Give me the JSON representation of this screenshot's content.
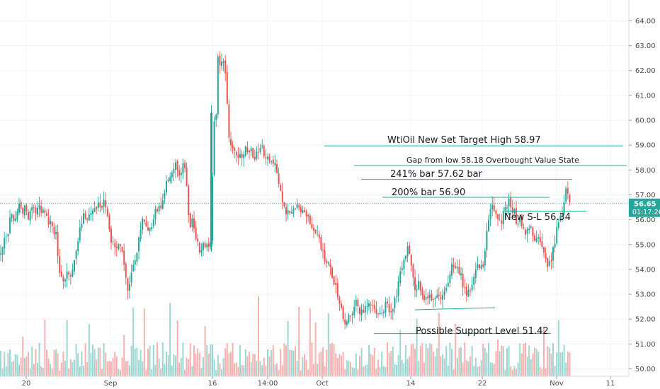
{
  "chart_data": {
    "type": "candlestick",
    "ylim": [
      49.75,
      64.5
    ],
    "y_ticks": [
      "50.00",
      "51.00",
      "52.00",
      "53.00",
      "54.00",
      "55.00",
      "56.00",
      "57.00",
      "58.00",
      "59.00",
      "60.00",
      "61.00",
      "62.00",
      "63.00",
      "64.00"
    ],
    "x_ticks": [
      "20",
      "Sep",
      "16",
      "14:00",
      "Oct",
      "14",
      "22",
      "Nov",
      "11"
    ],
    "grid": true,
    "colors": {
      "up": "#26a69a",
      "down": "#ef5350",
      "grid": "#f0f3fa",
      "line": "#26a69a",
      "last_price_bg": "#26a69a"
    },
    "last_price": {
      "value": "56.65",
      "countdown": "01:17:26"
    },
    "annotations": [
      {
        "text": "WtiOil New Set Target High 58.97",
        "price": 58.97
      },
      {
        "text": "Gap from low 58.18 Overbought Value State",
        "price": 58.18
      },
      {
        "text": "241% bar 57.62 bar",
        "price": 57.62
      },
      {
        "text": "200% bar 56.90",
        "price": 56.9
      },
      {
        "text": "New S-L 56.34",
        "price": 56.34
      },
      {
        "text": "Possible Support Level 51.42",
        "price": 51.42
      }
    ],
    "close_path": [
      [
        0,
        54.6
      ],
      [
        6,
        55.5
      ],
      [
        10,
        55.2
      ],
      [
        14,
        56.3
      ],
      [
        18,
        55.8
      ],
      [
        22,
        56.3
      ],
      [
        26,
        56.5
      ],
      [
        30,
        56.2
      ],
      [
        34,
        56.6
      ],
      [
        38,
        56.0
      ],
      [
        42,
        56.4
      ],
      [
        46,
        56.4
      ],
      [
        50,
        56.2
      ],
      [
        54,
        56.7
      ],
      [
        58,
        56.3
      ],
      [
        62,
        56.5
      ],
      [
        66,
        56.0
      ],
      [
        70,
        55.8
      ],
      [
        74,
        55.5
      ],
      [
        78,
        55.4
      ],
      [
        82,
        54.2
      ],
      [
        86,
        53.6
      ],
      [
        90,
        53.3
      ],
      [
        94,
        53.8
      ],
      [
        98,
        53.6
      ],
      [
        102,
        53.9
      ],
      [
        106,
        54.6
      ],
      [
        110,
        55.4
      ],
      [
        114,
        55.8
      ],
      [
        118,
        56.2
      ],
      [
        122,
        55.9
      ],
      [
        126,
        56.3
      ],
      [
        130,
        56.5
      ],
      [
        134,
        56.3
      ],
      [
        138,
        56.6
      ],
      [
        142,
        56.5
      ],
      [
        146,
        56.7
      ],
      [
        150,
        56.2
      ],
      [
        154,
        55.3
      ],
      [
        158,
        55.1
      ],
      [
        162,
        55.0
      ],
      [
        166,
        54.9
      ],
      [
        170,
        54.9
      ],
      [
        174,
        54.3
      ],
      [
        178,
        53.2
      ],
      [
        182,
        53.3
      ],
      [
        186,
        54.1
      ],
      [
        190,
        54.3
      ],
      [
        194,
        55.1
      ],
      [
        198,
        55.8
      ],
      [
        202,
        56.1
      ],
      [
        206,
        55.5
      ],
      [
        210,
        55.5
      ],
      [
        214,
        55.8
      ],
      [
        218,
        56.4
      ],
      [
        222,
        56.5
      ],
      [
        226,
        56.6
      ],
      [
        230,
        57.1
      ],
      [
        234,
        57.4
      ],
      [
        238,
        57.5
      ],
      [
        242,
        58.0
      ],
      [
        246,
        58.2
      ],
      [
        250,
        58.0
      ],
      [
        254,
        57.7
      ],
      [
        258,
        58.2
      ],
      [
        262,
        57.8
      ],
      [
        266,
        55.7
      ],
      [
        270,
        56.0
      ],
      [
        274,
        55.5
      ],
      [
        278,
        55.0
      ],
      [
        282,
        54.8
      ],
      [
        286,
        55.1
      ],
      [
        290,
        55.0
      ],
      [
        294,
        55.0
      ],
      [
        298,
        55.0
      ],
      [
        300,
        60.2
      ],
      [
        304,
        60.0
      ],
      [
        306,
        62.5
      ],
      [
        310,
        62.2
      ],
      [
        314,
        62.4
      ],
      [
        318,
        61.9
      ],
      [
        322,
        59.4
      ],
      [
        326,
        59.0
      ],
      [
        330,
        58.8
      ],
      [
        334,
        58.3
      ],
      [
        338,
        58.6
      ],
      [
        342,
        58.5
      ],
      [
        346,
        58.9
      ],
      [
        350,
        58.6
      ],
      [
        354,
        58.8
      ],
      [
        358,
        58.5
      ],
      [
        362,
        58.8
      ],
      [
        366,
        58.9
      ],
      [
        370,
        58.9
      ],
      [
        374,
        58.4
      ],
      [
        378,
        58.6
      ],
      [
        382,
        58.2
      ],
      [
        386,
        58.3
      ],
      [
        390,
        57.8
      ],
      [
        394,
        57.2
      ],
      [
        398,
        56.8
      ],
      [
        402,
        56.3
      ],
      [
        406,
        56.4
      ],
      [
        410,
        56.4
      ],
      [
        414,
        56.5
      ],
      [
        418,
        56.5
      ],
      [
        422,
        56.4
      ],
      [
        426,
        56.3
      ],
      [
        430,
        56.1
      ],
      [
        434,
        56.2
      ],
      [
        438,
        55.8
      ],
      [
        442,
        55.6
      ],
      [
        446,
        55.5
      ],
      [
        450,
        55.2
      ],
      [
        454,
        54.8
      ],
      [
        458,
        54.4
      ],
      [
        462,
        54.3
      ],
      [
        466,
        53.9
      ],
      [
        470,
        53.5
      ],
      [
        474,
        53.2
      ],
      [
        478,
        52.6
      ],
      [
        482,
        52.2
      ],
      [
        486,
        51.9
      ],
      [
        490,
        52.1
      ],
      [
        494,
        52.2
      ],
      [
        498,
        52.3
      ],
      [
        502,
        52.7
      ],
      [
        506,
        52.4
      ],
      [
        510,
        52.2
      ],
      [
        514,
        52.3
      ],
      [
        518,
        52.7
      ],
      [
        522,
        52.5
      ],
      [
        526,
        52.6
      ],
      [
        530,
        52.3
      ],
      [
        534,
        52.1
      ],
      [
        538,
        52.1
      ],
      [
        542,
        52.5
      ],
      [
        546,
        52.7
      ],
      [
        550,
        52.2
      ],
      [
        554,
        52.4
      ],
      [
        558,
        52.9
      ],
      [
        562,
        53.5
      ],
      [
        566,
        54.1
      ],
      [
        570,
        54.4
      ],
      [
        574,
        54.8
      ],
      [
        578,
        54.6
      ],
      [
        582,
        53.8
      ],
      [
        586,
        53.0
      ],
      [
        590,
        53.5
      ],
      [
        594,
        53.2
      ],
      [
        598,
        52.9
      ],
      [
        602,
        52.8
      ],
      [
        606,
        52.8
      ],
      [
        610,
        52.6
      ],
      [
        614,
        52.8
      ],
      [
        618,
        52.9
      ],
      [
        622,
        53.0
      ],
      [
        626,
        52.9
      ],
      [
        630,
        53.4
      ],
      [
        634,
        53.6
      ],
      [
        638,
        54.2
      ],
      [
        642,
        54.1
      ],
      [
        646,
        53.9
      ],
      [
        650,
        53.7
      ],
      [
        654,
        53.3
      ],
      [
        658,
        53.0
      ],
      [
        662,
        53.1
      ],
      [
        666,
        53.4
      ],
      [
        670,
        53.9
      ],
      [
        674,
        54.1
      ],
      [
        678,
        54.3
      ],
      [
        682,
        54.0
      ],
      [
        686,
        55.3
      ],
      [
        690,
        56.1
      ],
      [
        694,
        56.5
      ],
      [
        698,
        56.4
      ],
      [
        702,
        56.0
      ],
      [
        706,
        55.8
      ],
      [
        710,
        56.3
      ],
      [
        714,
        56.6
      ],
      [
        718,
        56.7
      ],
      [
        722,
        56.5
      ],
      [
        726,
        56.2
      ],
      [
        730,
        55.8
      ],
      [
        734,
        56.0
      ],
      [
        738,
        55.5
      ],
      [
        742,
        55.3
      ],
      [
        746,
        55.7
      ],
      [
        750,
        55.6
      ],
      [
        754,
        55.3
      ],
      [
        758,
        55.5
      ],
      [
        762,
        55.2
      ],
      [
        766,
        54.9
      ],
      [
        770,
        54.3
      ],
      [
        774,
        54.1
      ],
      [
        778,
        54.4
      ],
      [
        782,
        55.1
      ],
      [
        786,
        55.7
      ],
      [
        790,
        56.3
      ],
      [
        794,
        56.4
      ],
      [
        798,
        57.2
      ],
      [
        802,
        56.9
      ],
      [
        806,
        56.65
      ]
    ]
  }
}
